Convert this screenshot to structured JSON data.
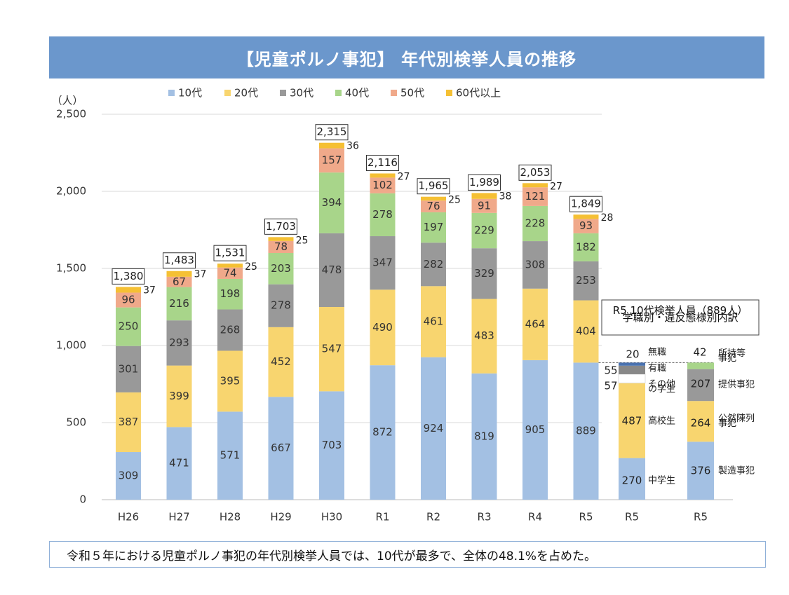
{
  "header": {
    "title": "【児童ポルノ事犯】 年代別検挙人員の推移"
  },
  "note": "令和５年における児童ポルノ事犯の年代別検挙人員では、10代が最多で、全体の48.1%を占めた。",
  "colors": {
    "10代": "#a3c0e3",
    "20代": "#f8d56f",
    "30代": "#999999",
    "40代": "#a8d58a",
    "50代": "#f0a98a",
    "60代以上": "#f5c034",
    "無職": "#4a72b0",
    "有職": "#888888",
    "その他の学生": "#ffffff",
    "grid": "#d9d9d9",
    "box": "#333333"
  },
  "chart_data": [
    {
      "type": "bar",
      "stacked": true,
      "categories": [
        "H26",
        "H27",
        "H28",
        "H29",
        "H30",
        "R1",
        "R2",
        "R3",
        "R4",
        "R5"
      ],
      "ylabel": "（人）",
      "ylim": [
        0,
        2500
      ],
      "yticks": [
        "0",
        "500",
        "1,000",
        "1,500",
        "2,000",
        "2,500"
      ],
      "grid": true,
      "legend_position": "top",
      "series": [
        {
          "name": "10代",
          "values": [
            309,
            471,
            571,
            667,
            703,
            872,
            924,
            819,
            905,
            889
          ]
        },
        {
          "name": "20代",
          "values": [
            387,
            399,
            395,
            452,
            547,
            490,
            461,
            483,
            464,
            404
          ]
        },
        {
          "name": "30代",
          "values": [
            301,
            293,
            268,
            278,
            478,
            347,
            282,
            329,
            308,
            253
          ]
        },
        {
          "name": "40代",
          "values": [
            250,
            216,
            198,
            203,
            394,
            278,
            197,
            229,
            228,
            182
          ]
        },
        {
          "name": "50代",
          "values": [
            96,
            67,
            74,
            78,
            157,
            102,
            76,
            91,
            121,
            93
          ]
        },
        {
          "name": "60代以上",
          "values": [
            37,
            37,
            25,
            25,
            36,
            27,
            25,
            38,
            27,
            28
          ]
        }
      ],
      "totals": [
        "1,380",
        "1,483",
        "1,531",
        "1,703",
        "2,315",
        "2,116",
        "1,965",
        "1,989",
        "2,053",
        "1,849"
      ]
    },
    {
      "type": "bar",
      "stacked": true,
      "category": "R5",
      "title": "R5 10代検挙人員（889人）\n学職別・違反態様別内訳",
      "breakdown": "学職別",
      "segments": [
        {
          "name": "中学生",
          "value": 270
        },
        {
          "name": "高校生",
          "value": 487
        },
        {
          "name": "その他\nの学生",
          "value": 57
        },
        {
          "name": "有職",
          "value": 55
        },
        {
          "name": "無職",
          "value": 20
        }
      ]
    },
    {
      "type": "bar",
      "stacked": true,
      "category": "R5",
      "breakdown": "違反態様別",
      "segments": [
        {
          "name": "製造事犯",
          "value": 376
        },
        {
          "name": "公然陳列\n事犯",
          "value": 264
        },
        {
          "name": "提供事犯",
          "value": 207
        },
        {
          "name": "所持等\n事犯",
          "value": 42
        }
      ]
    }
  ]
}
